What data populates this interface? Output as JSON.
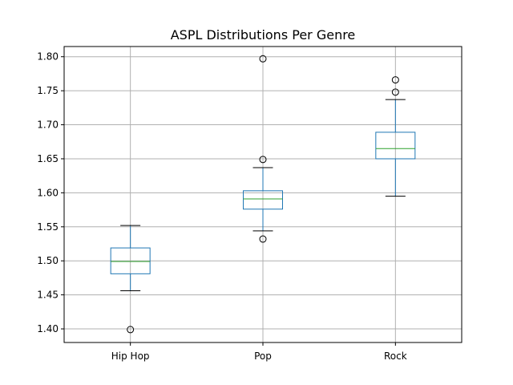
{
  "chart_data": {
    "type": "box",
    "title": "ASPL Distributions Per Genre",
    "xlabel": "",
    "ylabel": "",
    "categories": [
      "Hip Hop",
      "Pop",
      "Rock"
    ],
    "ylim": [
      1.38,
      1.815
    ],
    "yticks": [
      "1.40",
      "1.45",
      "1.50",
      "1.55",
      "1.60",
      "1.65",
      "1.70",
      "1.75",
      "1.80"
    ],
    "grid": true,
    "boxes": [
      {
        "category": "Hip Hop",
        "whisker_low": 1.456,
        "q1": 1.481,
        "median": 1.499,
        "q3": 1.519,
        "whisker_high": 1.552,
        "outliers": [
          1.399
        ]
      },
      {
        "category": "Pop",
        "whisker_low": 1.544,
        "q1": 1.576,
        "median": 1.591,
        "q3": 1.603,
        "whisker_high": 1.637,
        "outliers": [
          1.532,
          1.649,
          1.797
        ]
      },
      {
        "category": "Rock",
        "whisker_low": 1.595,
        "q1": 1.65,
        "median": 1.665,
        "q3": 1.689,
        "whisker_high": 1.737,
        "outliers": [
          1.748,
          1.766
        ]
      }
    ],
    "colors": {
      "box": "#1f77b4",
      "median": "#2ca02c",
      "whisker_cap": "#000000",
      "grid": "#b0b0b0",
      "outlier": "#000000"
    }
  }
}
